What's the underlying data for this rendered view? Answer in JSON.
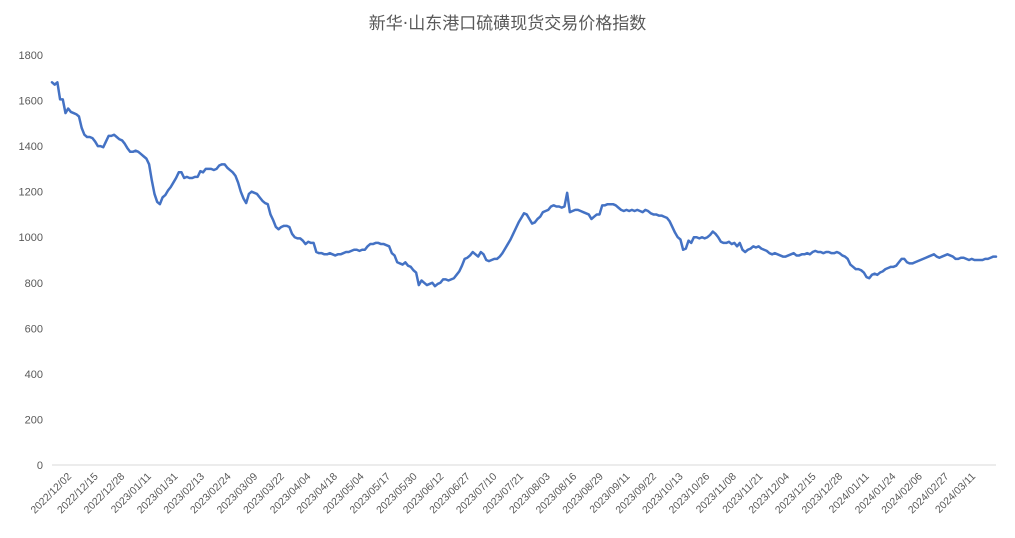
{
  "chart_data": {
    "type": "line",
    "title": "新华·山东港口硫磺现货交易价格指数",
    "xlabel": "",
    "ylabel": "",
    "ylim": [
      0,
      1800
    ],
    "yticks": [
      0,
      200,
      400,
      600,
      800,
      1000,
      1200,
      1400,
      1600,
      1800
    ],
    "grid": false,
    "legend": "none",
    "colors": {
      "line": "#4472C4",
      "axis": "#D9D9D9",
      "text": "#595959"
    },
    "x_tick_labels": [
      "2022/12/02",
      "2022/12/15",
      "2022/12/28",
      "2023/01/11",
      "2023/01/31",
      "2023/02/13",
      "2023/02/24",
      "2023/03/09",
      "2023/03/22",
      "2023/04/04",
      "2023/04/18",
      "2023/05/04",
      "2023/05/17",
      "2023/05/30",
      "2023/06/12",
      "2023/06/27",
      "2023/07/10",
      "2023/07/21",
      "2023/08/03",
      "2023/08/16",
      "2023/08/29",
      "2023/09/11",
      "2023/09/22",
      "2023/10/13",
      "2023/10/26",
      "2023/11/08",
      "2023/11/21",
      "2023/12/04",
      "2023/12/15",
      "2023/12/28",
      "2024/01/11",
      "2024/01/24",
      "2024/02/06",
      "2024/02/27",
      "2024/03/11"
    ],
    "series": [
      {
        "values": [
          1680,
          1670,
          1680,
          1605,
          1605,
          1545,
          1565,
          1550,
          1545,
          1540,
          1530,
          1480,
          1450,
          1440,
          1440,
          1435,
          1420,
          1400,
          1400,
          1395,
          1420,
          1445,
          1445,
          1450,
          1440,
          1430,
          1425,
          1410,
          1390,
          1375,
          1375,
          1380,
          1375,
          1365,
          1355,
          1345,
          1320,
          1250,
          1190,
          1155,
          1145,
          1175,
          1185,
          1205,
          1220,
          1240,
          1260,
          1285,
          1285,
          1260,
          1265,
          1260,
          1260,
          1265,
          1265,
          1290,
          1285,
          1300,
          1300,
          1300,
          1295,
          1300,
          1315,
          1320,
          1320,
          1305,
          1295,
          1285,
          1270,
          1240,
          1200,
          1170,
          1150,
          1190,
          1200,
          1195,
          1190,
          1175,
          1160,
          1150,
          1145,
          1100,
          1075,
          1045,
          1035,
          1045,
          1050,
          1050,
          1045,
          1015,
          1000,
          995,
          995,
          985,
          970,
          980,
          975,
          975,
          935,
          930,
          930,
          925,
          925,
          930,
          925,
          920,
          925,
          925,
          930,
          935,
          935,
          940,
          945,
          945,
          940,
          945,
          945,
          960,
          970,
          970,
          975,
          975,
          970,
          970,
          965,
          960,
          930,
          920,
          890,
          885,
          880,
          890,
          875,
          870,
          855,
          845,
          790,
          810,
          800,
          790,
          795,
          800,
          785,
          795,
          800,
          815,
          815,
          810,
          815,
          820,
          835,
          850,
          875,
          905,
          910,
          920,
          935,
          925,
          915,
          935,
          925,
          900,
          895,
          900,
          905,
          905,
          915,
          930,
          950,
          970,
          990,
          1015,
          1040,
          1065,
          1085,
          1105,
          1100,
          1080,
          1060,
          1065,
          1080,
          1090,
          1110,
          1115,
          1120,
          1135,
          1140,
          1135,
          1135,
          1130,
          1135,
          1195,
          1110,
          1115,
          1120,
          1120,
          1115,
          1110,
          1105,
          1100,
          1080,
          1090,
          1100,
          1100,
          1140,
          1140,
          1145,
          1145,
          1145,
          1140,
          1130,
          1120,
          1115,
          1120,
          1115,
          1120,
          1115,
          1120,
          1115,
          1110,
          1120,
          1115,
          1105,
          1100,
          1100,
          1095,
          1095,
          1090,
          1085,
          1070,
          1045,
          1020,
          1000,
          990,
          945,
          950,
          985,
          975,
          1000,
          1000,
          995,
          1000,
          995,
          1000,
          1010,
          1025,
          1015,
          1000,
          980,
          975,
          975,
          980,
          970,
          975,
          960,
          975,
          945,
          935,
          945,
          950,
          960,
          955,
          960,
          950,
          945,
          940,
          930,
          925,
          930,
          925,
          920,
          915,
          915,
          920,
          925,
          930,
          920,
          920,
          925,
          925,
          930,
          925,
          935,
          940,
          935,
          935,
          930,
          935,
          935,
          930,
          930,
          935,
          930,
          920,
          915,
          905,
          880,
          870,
          860,
          860,
          855,
          845,
          825,
          820,
          835,
          840,
          835,
          845,
          850,
          860,
          865,
          870,
          870,
          875,
          890,
          905,
          905,
          890,
          885,
          885,
          890,
          895,
          900,
          905,
          910,
          915,
          920,
          925,
          915,
          910,
          915,
          920,
          925,
          920,
          915,
          905,
          905,
          910,
          910,
          905,
          900,
          905,
          900,
          900,
          900,
          900,
          905,
          905,
          910,
          915,
          915
        ]
      }
    ]
  }
}
